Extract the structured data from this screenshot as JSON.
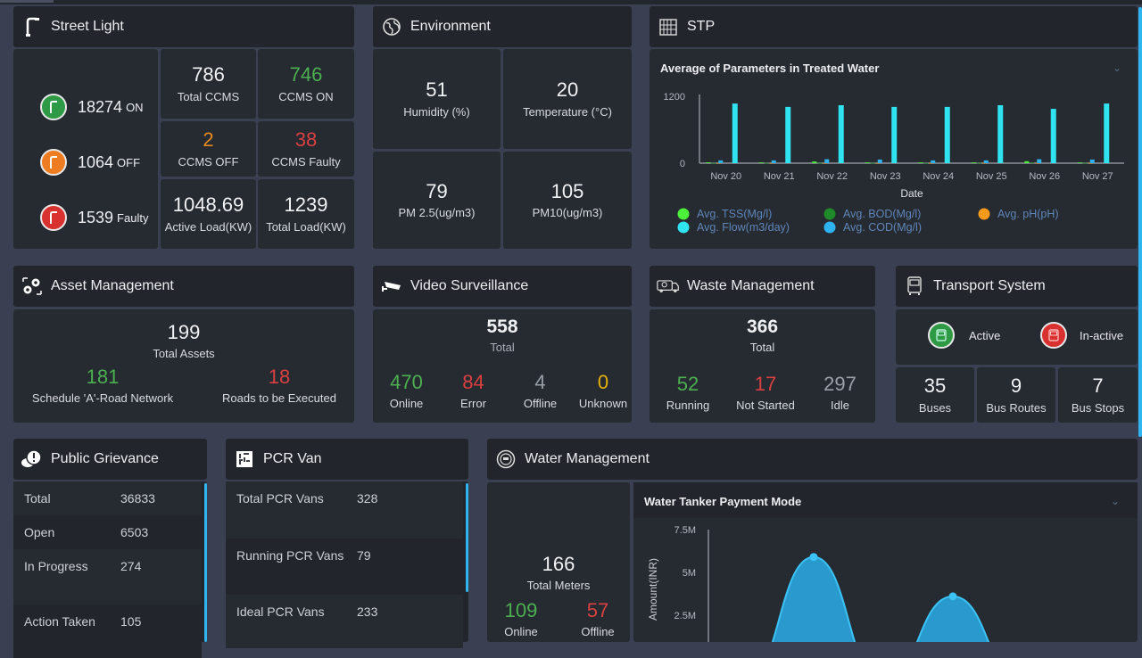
{
  "street_light": {
    "title": "Street Light",
    "on": {
      "value": "18274",
      "label": "ON",
      "color": "#2e9a45"
    },
    "off": {
      "value": "1064",
      "label": "OFF",
      "color": "#ee7d22"
    },
    "faulty": {
      "value": "1539",
      "label": "Faulty",
      "color": "#d8312f"
    },
    "stats": [
      {
        "value": "786",
        "label": "Total CCMS"
      },
      {
        "value": "746",
        "label": "CCMS ON"
      },
      {
        "value": "2",
        "label": "CCMS OFF"
      },
      {
        "value": "38",
        "label": "CCMS Faulty"
      },
      {
        "value": "1048.69",
        "label": "Active Load(KW)"
      },
      {
        "value": "1239",
        "label": "Total Load(KW)"
      }
    ]
  },
  "environment": {
    "title": "Environment",
    "stats": [
      {
        "value": "51",
        "label": "Humidity (%)"
      },
      {
        "value": "20",
        "label": "Temperature (°C)"
      },
      {
        "value": "79",
        "label": "PM 2.5(ug/m3)"
      },
      {
        "value": "105",
        "label": "PM10(ug/m3)"
      }
    ]
  },
  "stp": {
    "title": "STP",
    "chart_title": "Average of Parameters in Treated Water"
  },
  "chart_data": [
    {
      "type": "bar",
      "title": "Average of Parameters in Treated Water",
      "xlabel": "Date",
      "ylabel": "",
      "ylim": [
        0,
        1200
      ],
      "yticks": [
        "0",
        "1200"
      ],
      "categories": [
        "Nov 20",
        "Nov 21",
        "Nov 22",
        "Nov 23",
        "Nov 24",
        "Nov 25",
        "Nov 26",
        "Nov 27"
      ],
      "legend_position": "bottom",
      "series": [
        {
          "name": "Avg. TSS(Mg/l)",
          "color": "#4cf03a",
          "values": [
            15,
            12,
            30,
            12,
            12,
            12,
            35,
            12
          ]
        },
        {
          "name": "Avg. BOD(Mg/l)",
          "color": "#1f8a2a",
          "values": [
            5,
            5,
            5,
            5,
            5,
            5,
            10,
            5
          ]
        },
        {
          "name": "Avg. pH(pH)",
          "color": "#f59a1b",
          "values": [
            7,
            7,
            7,
            7,
            7,
            7,
            7,
            7
          ]
        },
        {
          "name": "Avg. COD(Mg/l)",
          "color": "#2fb2f0",
          "values": [
            50,
            50,
            70,
            65,
            50,
            50,
            70,
            65
          ]
        },
        {
          "name": "Avg. Flow(m3/day)",
          "color": "#30e3f0",
          "values": [
            1070,
            1010,
            1040,
            1010,
            1010,
            1040,
            975,
            1070
          ]
        }
      ]
    },
    {
      "type": "area",
      "title": "Water Tanker Payment Mode",
      "ylabel": "Amount(INR)",
      "yticks": [
        "2.5M",
        "5M",
        "7.5M"
      ],
      "ylim": [
        0,
        7500000
      ],
      "x": [
        "",
        "",
        "",
        "",
        ""
      ],
      "series": [
        {
          "name": "Amount",
          "color": "#2a9fd6",
          "values": [
            0,
            5900000,
            0,
            3600000,
            0
          ]
        }
      ]
    }
  ],
  "asset_management": {
    "title": "Asset Management",
    "total": {
      "value": "199",
      "label": "Total Assets"
    },
    "left": {
      "value": "181",
      "label": "Schedule 'A'-Road Network"
    },
    "right": {
      "value": "18",
      "label": "Roads to be Executed"
    }
  },
  "video_surveillance": {
    "title": "Video Surveillance",
    "total": {
      "value": "558",
      "label": "Total"
    },
    "stats": [
      {
        "value": "470",
        "label": "Online"
      },
      {
        "value": "84",
        "label": "Error"
      },
      {
        "value": "4",
        "label": "Offline"
      },
      {
        "value": "0",
        "label": "Unknown"
      }
    ]
  },
  "waste_management": {
    "title": "Waste Management",
    "total": {
      "value": "366",
      "label": "Total"
    },
    "stats": [
      {
        "value": "52",
        "label": "Running"
      },
      {
        "value": "17",
        "label": "Not Started"
      },
      {
        "value": "297",
        "label": "Idle"
      }
    ]
  },
  "transport": {
    "title": "Transport System",
    "active_label": "Active",
    "inactive_label": "In-active",
    "stats": [
      {
        "value": "35",
        "label": "Buses"
      },
      {
        "value": "9",
        "label": "Bus Routes"
      },
      {
        "value": "7",
        "label": "Bus Stops"
      }
    ]
  },
  "public_grievance": {
    "title": "Public Grievance",
    "rows": [
      {
        "label": "Total",
        "value": "36833"
      },
      {
        "label": "Open",
        "value": "6503"
      },
      {
        "label": "In Progress",
        "value": "274"
      },
      {
        "label": "Action Taken",
        "value": "105"
      }
    ]
  },
  "pcr_van": {
    "title": "PCR Van",
    "rows": [
      {
        "label": "Total PCR Vans",
        "value": "328"
      },
      {
        "label": "Running PCR Vans",
        "value": "79"
      },
      {
        "label": "Ideal PCR Vans",
        "value": "233"
      }
    ]
  },
  "water_management": {
    "title": "Water Management",
    "total": {
      "value": "166",
      "label": "Total Meters"
    },
    "online": {
      "value": "109",
      "label": "Online"
    },
    "offline": {
      "value": "57",
      "label": "Offline"
    },
    "chart_title": "Water Tanker Payment Mode"
  }
}
